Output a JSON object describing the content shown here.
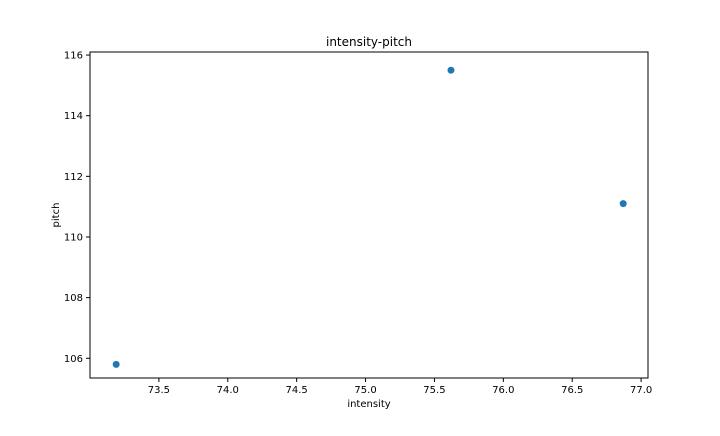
{
  "chart_data": {
    "type": "scatter",
    "title": "intensity-pitch",
    "xlabel": "intensity",
    "ylabel": "pitch",
    "xlim": [
      73.0,
      77.05
    ],
    "ylim": [
      105.35,
      116.1
    ],
    "xticks": [
      73.5,
      74.0,
      74.5,
      75.0,
      75.5,
      76.0,
      76.5,
      77.0
    ],
    "xtick_labels": [
      "73.5",
      "74.0",
      "74.5",
      "75.0",
      "75.5",
      "76.0",
      "76.5",
      "77.0"
    ],
    "yticks": [
      106,
      108,
      110,
      112,
      114,
      116
    ],
    "ytick_labels": [
      "106",
      "108",
      "110",
      "112",
      "114",
      "116"
    ],
    "grid": false,
    "marker_color": "#1f77b4",
    "points": [
      {
        "x": 73.19,
        "y": 105.8
      },
      {
        "x": 75.62,
        "y": 115.5
      },
      {
        "x": 76.87,
        "y": 111.1
      }
    ]
  }
}
